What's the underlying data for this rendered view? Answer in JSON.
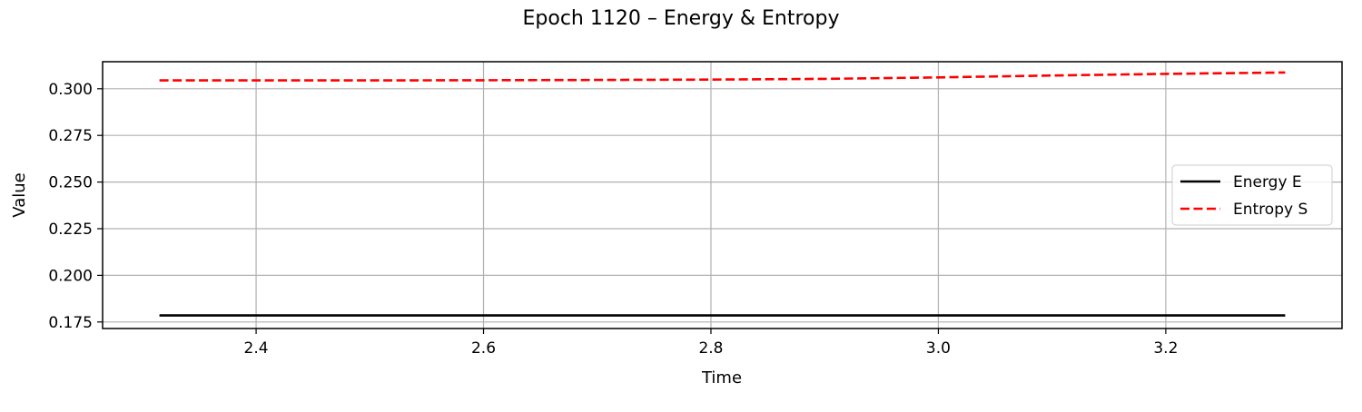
{
  "chart_data": {
    "type": "line",
    "title": "Epoch 1120 – Energy & Entropy",
    "xlabel": "Time",
    "ylabel": "Value",
    "xlim": [
      2.265,
      3.355
    ],
    "ylim": [
      0.1715,
      0.3145
    ],
    "xticks": [
      2.4,
      2.6,
      2.8,
      3.0,
      3.2
    ],
    "xtick_labels": [
      "2.4",
      "2.6",
      "2.8",
      "3.0",
      "3.2"
    ],
    "yticks": [
      0.175,
      0.2,
      0.225,
      0.25,
      0.275,
      0.3
    ],
    "ytick_labels": [
      "0.175",
      "0.200",
      "0.225",
      "0.250",
      "0.275",
      "0.300"
    ],
    "grid": true,
    "legend_position": "center-right",
    "series": [
      {
        "name": "Energy E",
        "color": "#000000",
        "linestyle": "solid",
        "x": [
          2.315,
          2.5,
          2.7,
          2.9,
          3.1,
          3.305
        ],
        "values": [
          0.1785,
          0.1785,
          0.1785,
          0.1785,
          0.1785,
          0.1785
        ]
      },
      {
        "name": "Entropy S",
        "color": "#ff0000",
        "linestyle": "dashed",
        "x": [
          2.315,
          2.4,
          2.5,
          2.6,
          2.7,
          2.8,
          2.9,
          3.0,
          3.1,
          3.2,
          3.305
        ],
        "values": [
          0.3045,
          0.3045,
          0.3045,
          0.3046,
          0.3047,
          0.3049,
          0.3053,
          0.3061,
          0.3071,
          0.308,
          0.3087
        ]
      }
    ]
  }
}
